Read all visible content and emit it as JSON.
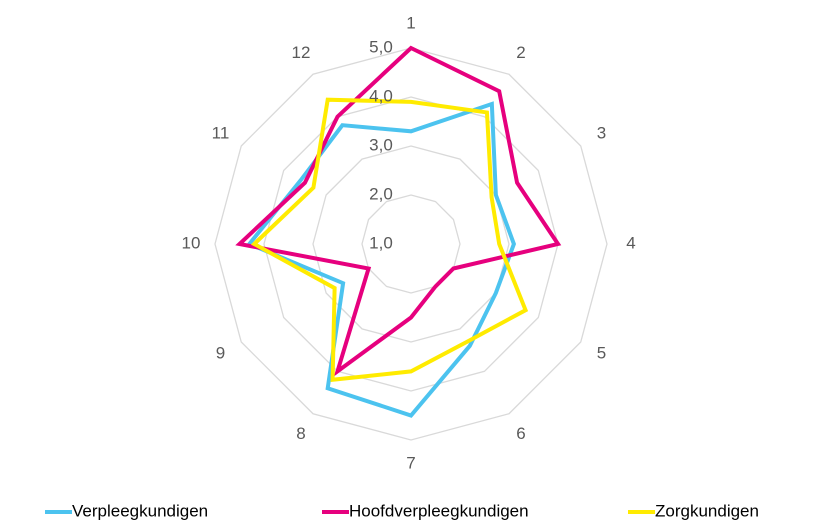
{
  "chart_data": {
    "type": "radar",
    "categories": [
      "1",
      "2",
      "3",
      "4",
      "5",
      "6",
      "7",
      "8",
      "9",
      "10",
      "11",
      "12"
    ],
    "series": [
      {
        "name": "Verpleegkundigen",
        "color": "#4cc3ef",
        "values": [
          3.3,
          4.3,
          3.0,
          3.1,
          3.0,
          3.4,
          4.5,
          4.4,
          2.6,
          4.3,
          3.6,
          3.8
        ]
      },
      {
        "name": "Hoofdverpleegkundigen",
        "color": "#e6007e",
        "values": [
          5.0,
          4.6,
          3.5,
          4.0,
          2.0,
          2.0,
          2.5,
          4.0,
          2.0,
          4.5,
          3.5,
          4.0
        ]
      },
      {
        "name": "Zorgkundigen",
        "color": "#ffeb00",
        "values": [
          3.9,
          4.1,
          2.9,
          2.8,
          3.7,
          3.3,
          3.6,
          4.2,
          2.8,
          4.2,
          3.3,
          4.4
        ]
      }
    ],
    "ylim": [
      1,
      5
    ],
    "yticks": [
      {
        "value": 1,
        "label": "1,0"
      },
      {
        "value": 2,
        "label": "2,0"
      },
      {
        "value": 3,
        "label": "3,0"
      },
      {
        "value": 4,
        "label": "4,0"
      },
      {
        "value": 5,
        "label": "5,0"
      }
    ],
    "grid": true,
    "legend": "bottom"
  }
}
